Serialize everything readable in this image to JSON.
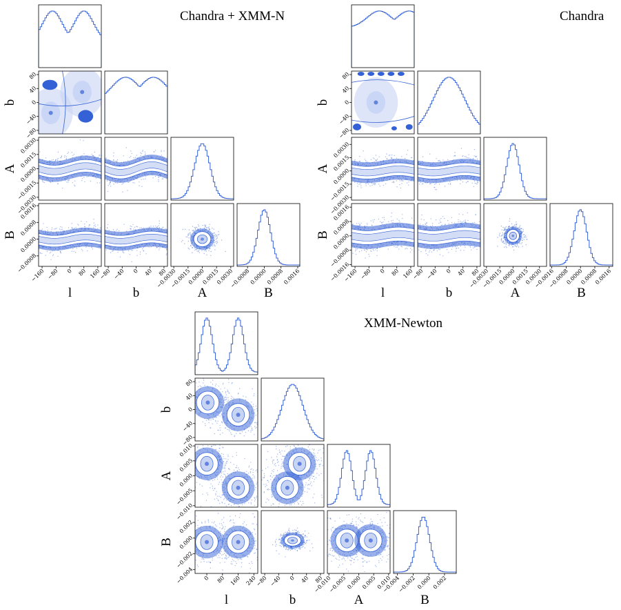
{
  "colors": {
    "primary": "#3461d6",
    "light": "#c8d4f4",
    "axis": "#000000"
  },
  "chart_data": [
    {
      "type": "corner",
      "title": "Chandra + XMM-N",
      "params": [
        "l",
        "b",
        "A",
        "B"
      ],
      "axes": {
        "l": {
          "lim": [
            -180,
            180
          ],
          "ticks": [
            -160,
            -80,
            0,
            80,
            160
          ],
          "tick_labels": [
            "−160",
            "−80",
            "0",
            "80",
            "160"
          ]
        },
        "b": {
          "lim": [
            -90,
            90
          ],
          "ticks": [
            -80,
            -40,
            0,
            40,
            80
          ],
          "tick_labels": [
            "−80",
            "−40",
            "0",
            "40",
            "80"
          ]
        },
        "A": {
          "lim": [
            -0.0033,
            0.0033
          ],
          "ticks": [
            -0.003,
            -0.0015,
            0.0,
            0.0015,
            0.003
          ],
          "tick_labels": [
            "−0.0030",
            "−0.0015",
            "0.0000",
            "0.0015",
            "0.0030"
          ]
        },
        "B": {
          "lim": [
            -0.0013,
            0.0017
          ],
          "ticks": [
            -0.0008,
            0.0,
            0.0008,
            0.0016
          ],
          "tick_labels": [
            "−0.0008",
            "0.0000",
            "0.0008",
            "0.0016"
          ]
        }
      },
      "marginals": {
        "l": {
          "kind": "bimodal",
          "peaks": [
            -100,
            80
          ],
          "width": 55,
          "floor": 0.45
        },
        "b": {
          "kind": "wave",
          "peaks": [
            -30,
            50
          ],
          "width": 40,
          "floor": 0.55
        },
        "A": {
          "kind": "gauss",
          "mean": 0.0,
          "sd": 0.0008
        },
        "B": {
          "kind": "gauss",
          "mean": 0.0,
          "sd": 0.0003
        }
      },
      "pairs": [
        {
          "x": "l",
          "y": "b",
          "style": "blobs",
          "modes": [
            [
              -110,
              -30
            ],
            [
              70,
              30
            ]
          ]
        },
        {
          "x": "l",
          "y": "A",
          "style": "band",
          "center": 0.0,
          "halfwidth": 0.0012,
          "wave": 0.0003
        },
        {
          "x": "b",
          "y": "A",
          "style": "band",
          "center": 0.0,
          "halfwidth": 0.0012,
          "wave": 0.0004
        },
        {
          "x": "l",
          "y": "B",
          "style": "band",
          "center": 0.0,
          "halfwidth": 0.0005,
          "wave": 0.0001
        },
        {
          "x": "b",
          "y": "B",
          "style": "band",
          "center": 0.0,
          "halfwidth": 0.0005,
          "wave": 0.0001
        },
        {
          "x": "A",
          "y": "B",
          "style": "ellipse",
          "center": [
            0.0,
            0.0
          ],
          "rx": 0.0015,
          "ry": 0.0006
        }
      ]
    },
    {
      "type": "corner",
      "title": "Chandra",
      "params": [
        "l",
        "b",
        "A",
        "B"
      ],
      "axes": {
        "l": {
          "lim": [
            -180,
            180
          ],
          "ticks": [
            -160,
            -80,
            0,
            80,
            160
          ],
          "tick_labels": [
            "−160",
            "−80",
            "0",
            "80",
            "160"
          ]
        },
        "b": {
          "lim": [
            -90,
            90
          ],
          "ticks": [
            -80,
            -40,
            0,
            40,
            80
          ],
          "tick_labels": [
            "−80",
            "−40",
            "0",
            "40",
            "80"
          ]
        },
        "A": {
          "lim": [
            -0.0033,
            0.0038
          ],
          "ticks": [
            -0.003,
            -0.0015,
            0.0,
            0.0015,
            0.003
          ],
          "tick_labels": [
            "−0.0030",
            "−0.0015",
            "0.0000",
            "0.0015",
            "0.0030"
          ]
        },
        "B": {
          "lim": [
            -0.0017,
            0.0018
          ],
          "ticks": [
            -0.0016,
            -0.0008,
            0.0,
            0.0008,
            0.0016
          ],
          "tick_labels": [
            "−0.0016",
            "−0.0008",
            "0.0000",
            "0.0008",
            "0.0016"
          ]
        }
      },
      "marginals": {
        "l": {
          "kind": "wave",
          "peaks": [
            -20,
            150
          ],
          "width": 70,
          "floor": 0.7
        },
        "b": {
          "kind": "gauss",
          "mean": 0,
          "sd": 45
        },
        "A": {
          "kind": "gauss",
          "mean": 0.0,
          "sd": 0.0007
        },
        "B": {
          "kind": "gauss",
          "mean": 0.0,
          "sd": 0.00035
        }
      },
      "pairs": [
        {
          "x": "l",
          "y": "b",
          "style": "diffuse",
          "modes": [
            [
              -40,
              0
            ]
          ]
        },
        {
          "x": "l",
          "y": "A",
          "style": "band",
          "center": 0.0,
          "halfwidth": 0.0013,
          "wave": 0.0002
        },
        {
          "x": "b",
          "y": "A",
          "style": "band",
          "center": 0.0,
          "halfwidth": 0.0013,
          "wave": 0.0002
        },
        {
          "x": "l",
          "y": "B",
          "style": "band",
          "center": 0.0,
          "halfwidth": 0.0007,
          "wave": 0.0001
        },
        {
          "x": "b",
          "y": "B",
          "style": "band",
          "center": 0.0,
          "halfwidth": 0.0007,
          "wave": 0.0001
        },
        {
          "x": "A",
          "y": "B",
          "style": "ellipse",
          "center": [
            0.0,
            0.0
          ],
          "rx": 0.0012,
          "ry": 0.0006
        }
      ]
    },
    {
      "type": "corner",
      "title": "XMM-Newton",
      "params": [
        "l",
        "b",
        "A",
        "B"
      ],
      "axes": {
        "l": {
          "lim": [
            -60,
            260
          ],
          "ticks": [
            0,
            80,
            160,
            240
          ],
          "tick_labels": [
            "0",
            "80",
            "160",
            "240"
          ]
        },
        "b": {
          "lim": [
            -90,
            90
          ],
          "ticks": [
            -80,
            -40,
            0,
            40,
            80
          ],
          "tick_labels": [
            "−80",
            "−40",
            "0",
            "40",
            "80"
          ]
        },
        "A": {
          "lim": [
            -0.0105,
            0.0105
          ],
          "ticks": [
            -0.01,
            -0.005,
            0.0,
            0.005,
            0.01
          ],
          "tick_labels": [
            "−0.010",
            "−0.005",
            "0.000",
            "0.005",
            "0.010"
          ]
        },
        "B": {
          "lim": [
            -0.0045,
            0.0035
          ],
          "ticks": [
            -0.004,
            -0.002,
            0.0,
            0.002
          ],
          "tick_labels": [
            "−0.004",
            "−0.002",
            "0.000",
            "0.002"
          ]
        }
      },
      "marginals": {
        "l": {
          "kind": "bimodal",
          "peaks": [
            0,
            160
          ],
          "width": 28,
          "floor": 0.02
        },
        "b": {
          "kind": "gauss",
          "mean": 0,
          "sd": 30
        },
        "A": {
          "kind": "bimodal",
          "peaks": [
            -0.004,
            0.004
          ],
          "width": 0.0017,
          "floor": 0.02
        },
        "B": {
          "kind": "gauss",
          "mean": -0.0007,
          "sd": 0.0008
        }
      },
      "pairs": [
        {
          "x": "l",
          "y": "b",
          "style": "twomodes",
          "modes": [
            [
              5,
              20
            ],
            [
              160,
              -15
            ]
          ]
        },
        {
          "x": "l",
          "y": "A",
          "style": "twomodes",
          "modes": [
            [
              0,
              0.004
            ],
            [
              160,
              -0.004
            ]
          ]
        },
        {
          "x": "b",
          "y": "A",
          "style": "twomodes",
          "modes": [
            [
              20,
              0.004
            ],
            [
              -15,
              -0.004
            ]
          ]
        },
        {
          "x": "l",
          "y": "B",
          "style": "twomodes",
          "modes": [
            [
              0,
              -0.0005
            ],
            [
              160,
              -0.0005
            ]
          ]
        },
        {
          "x": "b",
          "y": "B",
          "style": "ellipse",
          "center": [
            0,
            -0.0003
          ],
          "rx": 40,
          "ry": 0.0012
        },
        {
          "x": "A",
          "y": "B",
          "style": "twomodes",
          "modes": [
            [
              -0.004,
              -0.0003
            ],
            [
              0.004,
              -0.0003
            ]
          ]
        }
      ]
    }
  ]
}
